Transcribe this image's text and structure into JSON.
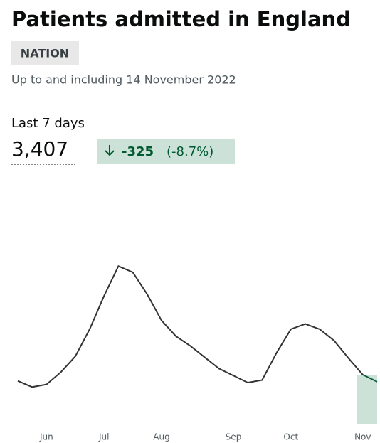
{
  "tag": "NATION",
  "subtitle": "Up to and including 14 November 2022",
  "headline": {
    "label": "Last 7 days",
    "value": "3,407",
    "change": "-325",
    "change_percent": "(-8.7%)"
  },
  "chart_data": {
    "type": "line",
    "title": "Patients admitted in England",
    "categories": [
      null,
      null,
      "Jun",
      null,
      null,
      null,
      "Jul",
      null,
      null,
      null,
      "Aug",
      null,
      null,
      null,
      null,
      "Sep",
      null,
      null,
      null,
      "Oct",
      null,
      null,
      null,
      null,
      "Nov",
      null
    ],
    "series": [
      {
        "color": "#333333",
        "highlight_color": "#0b5d3b",
        "highlight_fill": "#cce2d8",
        "values": [
          490,
          420,
          450,
          590,
          770,
          1080,
          1460,
          1800,
          1730,
          1480,
          1180,
          1000,
          890,
          760,
          630,
          550,
          470,
          500,
          810,
          1080,
          1140,
          1080,
          950,
          750,
          560,
          480
        ]
      }
    ]
  }
}
